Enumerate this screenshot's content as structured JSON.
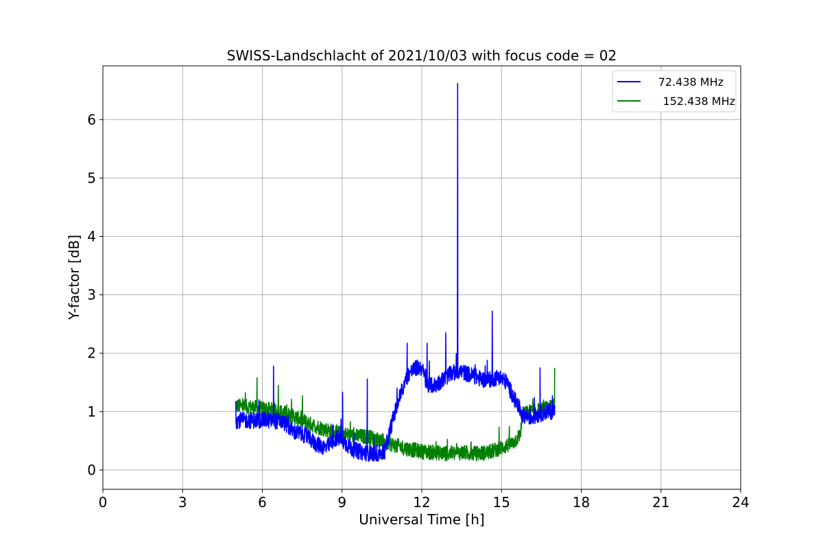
{
  "chart_data": {
    "type": "line",
    "title": "SWISS-Landschlacht of 2021/10/03 with focus code = 02",
    "xlabel": "Universal Time [h]",
    "ylabel": "Y-factor [dB]",
    "xlim": [
      0,
      24
    ],
    "ylim": [
      -0.33,
      6.92
    ],
    "xticks": [
      0,
      3,
      6,
      9,
      12,
      15,
      18,
      21,
      24
    ],
    "xtick_labels": [
      "0",
      "3",
      "6",
      "9",
      "12",
      "15",
      "18",
      "21",
      "24"
    ],
    "yticks": [
      0,
      1,
      2,
      3,
      4,
      5,
      6
    ],
    "ytick_labels": [
      "0",
      "1",
      "2",
      "3",
      "4",
      "5",
      "6"
    ],
    "grid": true,
    "legend_position": "top-right",
    "series": [
      {
        "name": "72.438 MHz",
        "color": "#0000ff",
        "x": [
          5.0,
          5.5,
          6.0,
          6.4,
          6.8,
          7.2,
          7.6,
          8.0,
          8.4,
          8.8,
          9.0,
          9.4,
          9.8,
          10.2,
          10.6,
          10.9,
          11.2,
          11.5,
          11.8,
          12.0,
          12.2,
          12.5,
          12.8,
          13.1,
          13.4,
          13.7,
          14.0,
          14.3,
          14.6,
          14.9,
          15.2,
          15.5,
          15.8,
          16.1,
          16.4,
          16.7,
          17.0
        ],
        "y": [
          0.85,
          0.85,
          0.85,
          0.85,
          0.82,
          0.65,
          0.6,
          0.45,
          0.38,
          0.55,
          0.5,
          0.35,
          0.3,
          0.28,
          0.3,
          0.85,
          1.3,
          1.65,
          1.75,
          1.75,
          1.45,
          1.45,
          1.55,
          1.65,
          1.7,
          1.65,
          1.6,
          1.55,
          1.55,
          1.6,
          1.5,
          1.2,
          0.95,
          0.9,
          0.95,
          1.0,
          1.0
        ],
        "spikes": [
          {
            "x": 6.42,
            "y": 1.78
          },
          {
            "x": 9.02,
            "y": 1.33
          },
          {
            "x": 9.95,
            "y": 1.56
          },
          {
            "x": 11.45,
            "y": 2.17
          },
          {
            "x": 12.2,
            "y": 2.17
          },
          {
            "x": 12.9,
            "y": 2.35
          },
          {
            "x": 13.35,
            "y": 6.62
          },
          {
            "x": 14.65,
            "y": 2.72
          },
          {
            "x": 16.45,
            "y": 1.75
          }
        ]
      },
      {
        "name": "152.438 MHz",
        "color": "#008000",
        "x": [
          5.0,
          5.5,
          6.0,
          6.5,
          7.0,
          7.5,
          8.0,
          8.5,
          9.0,
          9.5,
          10.0,
          10.5,
          11.0,
          11.5,
          12.0,
          12.5,
          13.0,
          13.5,
          14.0,
          14.5,
          15.0,
          15.4,
          15.7,
          15.8,
          16.1,
          16.4,
          16.7,
          17.0
        ],
        "y": [
          1.1,
          1.08,
          1.05,
          1.02,
          0.95,
          0.85,
          0.75,
          0.68,
          0.62,
          0.58,
          0.57,
          0.5,
          0.42,
          0.36,
          0.32,
          0.3,
          0.28,
          0.3,
          0.28,
          0.3,
          0.38,
          0.45,
          0.6,
          0.95,
          1.0,
          1.02,
          1.05,
          1.1
        ],
        "spikes": [
          {
            "x": 5.8,
            "y": 1.58
          },
          {
            "x": 6.6,
            "y": 1.45
          },
          {
            "x": 9.95,
            "y": 1.1
          },
          {
            "x": 17.0,
            "y": 1.75
          }
        ]
      }
    ]
  }
}
